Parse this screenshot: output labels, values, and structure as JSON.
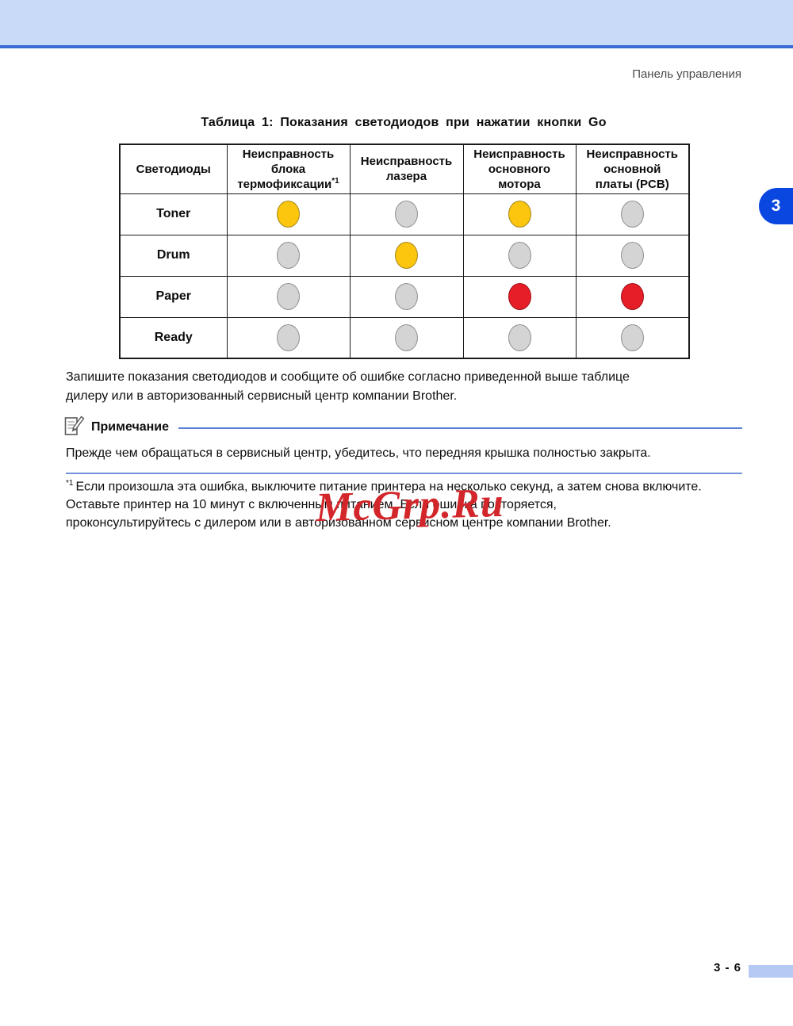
{
  "header": {
    "label": "Панель управления"
  },
  "page": {
    "page_number": "3 - 6",
    "section_badge": "3"
  },
  "table": {
    "title": "Таблица 1: Показания светодиодов при нажатии кнопки Go",
    "columns": [
      {
        "lines": [
          "Светодиоды"
        ]
      },
      {
        "lines": [
          "Неисправность",
          "блока",
          "термофиксации"
        ],
        "sup": "*1"
      },
      {
        "lines": [
          "Неисправность",
          "лазера"
        ]
      },
      {
        "lines": [
          "Неисправность",
          "основного",
          "мотора"
        ]
      },
      {
        "lines": [
          "Неисправность",
          "основной",
          "платы (PCB)"
        ]
      }
    ],
    "rows": [
      {
        "label": "Toner",
        "leds": [
          "yellow",
          "gray",
          "yellow",
          "gray"
        ]
      },
      {
        "label": "Drum",
        "leds": [
          "gray",
          "yellow",
          "gray",
          "gray"
        ]
      },
      {
        "label": "Paper",
        "leds": [
          "gray",
          "gray",
          "red",
          "red"
        ]
      },
      {
        "label": "Ready",
        "leds": [
          "gray",
          "gray",
          "gray",
          "gray"
        ]
      }
    ]
  },
  "paragraph": {
    "lines": [
      "Запишите показания светодиодов и сообщите об ошибке согласно приведенной выше таблице",
      "дилеру или в авторизованный сервисный центр компании Brother."
    ]
  },
  "note": {
    "label": "Примечание",
    "text": "Прежде чем обращаться в сервисный центр, убедитесь, что передняя крышка полностью закрыта."
  },
  "footnote": {
    "marker": "*1",
    "lines": [
      "Если произошла эта ошибка, выключите питание принтера на несколько секунд, а затем снова включите.",
      "Оставьте принтер на 10 минут с включенным питанием. Если ошибка повторяется,",
      "проконсультируйтесь с дилером или в авторизованном сервисном центре компании Brother."
    ]
  },
  "watermark": {
    "text": "McGrp.Ru"
  },
  "colors": {
    "banner_bg": "#C9DAF8",
    "banner_line": "#3A6BD5",
    "badge_bg": "#0A46E0",
    "note_rule": "#5B7FD4",
    "footer_rect": "#B5C9F5",
    "watermark_red": "#D2262B",
    "led_yellow": "#FBC60D",
    "led_gray": "#D4D4D4",
    "led_red": "#E51E28"
  }
}
